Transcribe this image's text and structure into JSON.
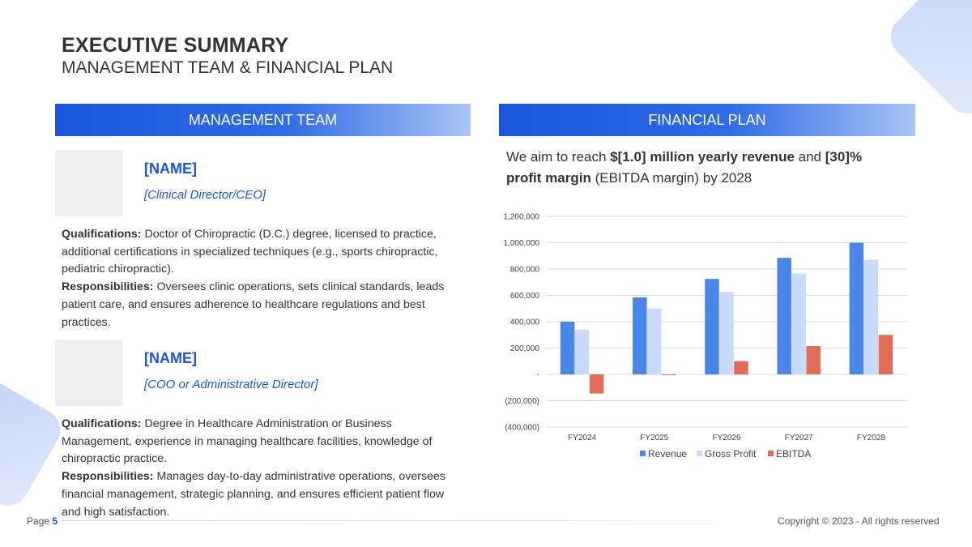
{
  "header": {
    "title": "EXECUTIVE SUMMARY",
    "subtitle": "MANAGEMENT TEAM & FINANCIAL PLAN"
  },
  "management": {
    "banner": "MANAGEMENT TEAM",
    "members": [
      {
        "name": "[NAME]",
        "role": "[Clinical Director/CEO]",
        "qual_label": "Qualifications:",
        "qual_text": " Doctor of Chiropractic (D.C.) degree, licensed to practice, additional certifications in specialized techniques (e.g., sports chiropractic, pediatric chiropractic).",
        "resp_label": "Responsibilities:",
        "resp_text": " Oversees clinic operations, sets clinical standards, leads patient care, and ensures adherence to healthcare regulations and best practices."
      },
      {
        "name": "[NAME]",
        "role": "[COO or Administrative Director]",
        "qual_label": "Qualifications:",
        "qual_text": " Degree in Healthcare Administration or Business Management, experience in managing healthcare facilities, knowledge of chiropractic practice.",
        "resp_label": "Responsibilities:",
        "resp_text": " Manages day-to-day administrative operations, oversees financial management, strategic planning, and ensures efficient patient flow and high satisfaction."
      }
    ]
  },
  "financial": {
    "banner": "FINANCIAL PLAN",
    "text_1": "We aim to reach ",
    "text_bold_1": "$[1.0] million yearly revenue",
    "text_2": " and ",
    "text_bold_2": "[30]% profit margin",
    "text_3": " (EBITDA margin) by 2028"
  },
  "chart_data": {
    "type": "bar",
    "categories": [
      "FY2024",
      "FY2025",
      "FY2026",
      "FY2027",
      "FY2028"
    ],
    "series": [
      {
        "name": "Revenue",
        "color": "#4a86e8",
        "values": [
          400000,
          585000,
          725000,
          885000,
          1000000
        ]
      },
      {
        "name": "Gross Profit",
        "color": "#c9daf8",
        "values": [
          340000,
          500000,
          625000,
          765000,
          870000
        ]
      },
      {
        "name": "EBITDA",
        "color": "#e06c5a",
        "values": [
          -145000,
          -5000,
          100000,
          215000,
          300000
        ]
      }
    ],
    "ylim": [
      -400000,
      1200000
    ],
    "yticks": [
      1200000,
      1000000,
      800000,
      600000,
      400000,
      200000,
      0,
      -200000,
      -400000
    ],
    "ytick_labels": [
      "1,200,000",
      "1,000,000",
      "800,000",
      "600,000",
      "400,000",
      "200,000",
      "-",
      "(200,000)",
      "(400,000)"
    ],
    "grid": true,
    "legend_position": "bottom"
  },
  "footer": {
    "page_label": "Page",
    "page_number": "5",
    "copyright": "Copyright © 2023 - All rights reserved"
  }
}
